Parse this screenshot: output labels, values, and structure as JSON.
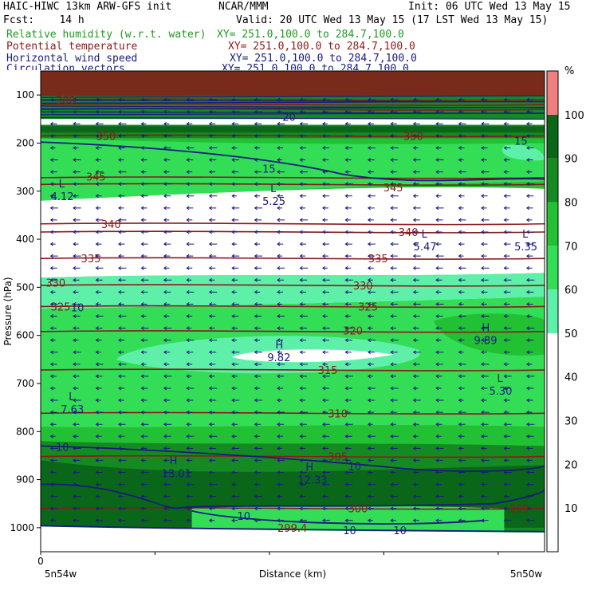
{
  "header": {
    "model": "HAIC-HIWC 13km ARW-GFS init",
    "org": "NCAR/MMM",
    "init": "Init: 06 UTC Wed 13 May 15",
    "fcst": "Fcst:    14 h",
    "valid": "Valid: 20 UTC Wed 13 May 15 (17 LST Wed 13 May 15)",
    "fields": [
      {
        "name": "Relative humidity (w.r.t. water)",
        "xy": "XY= 251.0,100.0 to 284.7,100.0",
        "color": "#1e9a1e"
      },
      {
        "name": "Potential temperature",
        "xy": "XY= 251.0,100.0 to 284.7,100.0",
        "color": "#8b1a1a"
      },
      {
        "name": "Horizontal wind speed",
        "xy": "XY= 251.0,100.0 to 284.7,100.0",
        "color": "#1a1a80"
      },
      {
        "name": "Circulation vectors",
        "xy": "XY= 251.0,100.0 to 284.7,100.0",
        "color": "#1a1a80"
      }
    ]
  },
  "colors": {
    "theta": "#8b1a1a",
    "wind": "#1a1a80",
    "vector": "#1a1a80",
    "rh_bands": [
      "#ffffff",
      "#ffffff",
      "#ffffff",
      "#ffffff",
      "#ffffff",
      "#5ef0a8",
      "#33dd55",
      "#22c033",
      "#158a22",
      "#0a6618",
      "#f08080"
    ]
  },
  "chart_data": {
    "type": "heatmap",
    "xlabel": "Distance (km)",
    "ylabel": "Pressure (hPa)",
    "x_ticks": [
      "0"
    ],
    "x_end_labels": [
      "5n54w",
      "5n50w"
    ],
    "y_ticks": [
      100,
      200,
      300,
      400,
      500,
      600,
      700,
      800,
      900,
      1000
    ],
    "ylim": [
      1050,
      50
    ],
    "colorbar": {
      "unit": "%",
      "ticks": [
        10,
        20,
        30,
        40,
        50,
        60,
        70,
        80,
        90,
        100
      ]
    },
    "theta_labels": [
      {
        "text": "380",
        "x": 0.03,
        "p": 110
      },
      {
        "text": "350",
        "x": 0.11,
        "p": 185
      },
      {
        "text": "350",
        "x": 0.72,
        "p": 185
      },
      {
        "text": "345",
        "x": 0.09,
        "p": 270
      },
      {
        "text": "345",
        "x": 0.68,
        "p": 292
      },
      {
        "text": "340",
        "x": 0.12,
        "p": 368
      },
      {
        "text": "340",
        "x": 0.71,
        "p": 385
      },
      {
        "text": "335",
        "x": 0.08,
        "p": 440
      },
      {
        "text": "335",
        "x": 0.65,
        "p": 440
      },
      {
        "text": "330",
        "x": 0.01,
        "p": 490
      },
      {
        "text": "330",
        "x": 0.62,
        "p": 496
      },
      {
        "text": "325",
        "x": 0.02,
        "p": 540
      },
      {
        "text": "325",
        "x": 0.63,
        "p": 540
      },
      {
        "text": "320",
        "x": 0.6,
        "p": 590
      },
      {
        "text": "315",
        "x": 0.55,
        "p": 672
      },
      {
        "text": "310",
        "x": 0.57,
        "p": 762
      },
      {
        "text": "305",
        "x": 0.57,
        "p": 852
      },
      {
        "text": "300",
        "x": 0.61,
        "p": 960
      },
      {
        "text": "299",
        "x": 0.93,
        "p": 960
      },
      {
        "text": "299.4",
        "x": 0.47,
        "p": 1000
      }
    ],
    "wind_labels": [
      {
        "text": "20",
        "x": 0.48,
        "p": 145
      },
      {
        "text": "15",
        "x": 0.94,
        "p": 195
      },
      {
        "text": "15",
        "x": 0.44,
        "p": 253
      },
      {
        "text": "10",
        "x": 0.06,
        "p": 542
      },
      {
        "text": "10",
        "x": 0.03,
        "p": 832
      },
      {
        "text": "10",
        "x": 0.61,
        "p": 872
      },
      {
        "text": "10",
        "x": 0.39,
        "p": 975
      },
      {
        "text": "10",
        "x": 0.6,
        "p": 1005
      },
      {
        "text": "10",
        "x": 0.7,
        "p": 1005
      }
    ],
    "extrema": [
      {
        "kind": "L",
        "value": "4.12",
        "x": 0.02,
        "p": 305
      },
      {
        "kind": "L",
        "value": "5.25",
        "x": 0.44,
        "p": 315
      },
      {
        "kind": "L",
        "value": "5.47",
        "x": 0.74,
        "p": 410
      },
      {
        "kind": "L",
        "value": "5.35",
        "x": 0.94,
        "p": 410
      },
      {
        "kind": "H",
        "value": "9.82",
        "x": 0.45,
        "p": 640
      },
      {
        "kind": "H",
        "value": "9.89",
        "x": 0.86,
        "p": 605
      },
      {
        "kind": "L",
        "value": "5.30",
        "x": 0.89,
        "p": 710
      },
      {
        "kind": "L",
        "value": "7.63",
        "x": 0.04,
        "p": 748
      },
      {
        "kind": "H",
        "value": "13.01",
        "x": 0.24,
        "p": 882
      },
      {
        "kind": "H",
        "value": "12.33",
        "x": 0.51,
        "p": 895
      }
    ]
  }
}
